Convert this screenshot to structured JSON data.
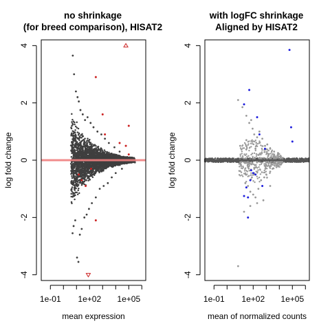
{
  "chart_data": [
    {
      "type": "scatter",
      "title_lines": [
        "no shrinkage",
        "(for breed comparison), HISAT2"
      ],
      "xlabel": "mean expression",
      "ylabel": "log fold change",
      "xscale": "log10",
      "xlim": [
        0.02,
        2000000
      ],
      "ylim": [
        -4.2,
        4.2
      ],
      "xticks": [
        0.1,
        100,
        100000
      ],
      "xtick_labels": [
        "1e-01",
        "1e+02",
        "1e+05"
      ],
      "yticks": [
        -4,
        -2,
        0,
        2,
        4
      ],
      "ytick_labels": [
        "-4",
        "-2",
        "0",
        "2",
        "4"
      ],
      "reference_line": {
        "y": 0,
        "color": "#f08080"
      },
      "colors": {
        "non_significant": "#3f3f3f",
        "significant": "#cc2222"
      },
      "series": [
        {
          "significant": false,
          "x": [
            5.2,
            6.5,
            9.0,
            12.0,
            15.0,
            20.0,
            30.0,
            45.0,
            70.0,
            120.0,
            200.0,
            400.0,
            800.0,
            1500.0,
            3000.0,
            8000.0,
            20000.0,
            5.0,
            6.0,
            8.0,
            11.0,
            14.0,
            18.0,
            25.0,
            40.0,
            60.0,
            90.0,
            150.0,
            300.0,
            600.0,
            1200.0,
            2500.0,
            5000.0,
            10000.0,
            30000.0
          ],
          "y": [
            3.65,
            3.0,
            2.4,
            2.2,
            2.05,
            1.75,
            1.6,
            1.4,
            1.5,
            1.3,
            1.15,
            1.0,
            0.9,
            0.75,
            0.6,
            0.45,
            0.3,
            -2.55,
            -2.3,
            -2.1,
            -3.4,
            -3.55,
            -2.6,
            -2.4,
            -2.0,
            -1.9,
            -1.7,
            -1.5,
            -1.3,
            -1.0,
            -0.9,
            -0.8,
            -0.6,
            -0.45,
            -0.3
          ]
        },
        {
          "significant": true,
          "x": [
            60000.0,
            300.0,
            100000.0,
            1500.0,
            20000.0,
            60000.0,
            300.0,
            80.0,
            50.0,
            15.0,
            25.0,
            130.0,
            1000.0,
            100000.0
          ],
          "y": [
            4.0,
            2.9,
            1.2,
            0.9,
            0.6,
            0.5,
            -2.1,
            -4.0,
            -0.9,
            -0.5,
            -0.7,
            -0.3,
            1.6,
            0.2
          ]
        }
      ]
    },
    {
      "type": "scatter",
      "title_lines": [
        "with logFC shrinkage",
        "Aligned by HISAT2"
      ],
      "xlabel": "mean of normalized counts",
      "ylabel": "log fold change",
      "xscale": "log10",
      "xlim": [
        0.02,
        2000000
      ],
      "ylim": [
        -4.2,
        4.2
      ],
      "xticks": [
        0.1,
        100,
        100000
      ],
      "xtick_labels": [
        "1e-01",
        "1e+02",
        "1e+05"
      ],
      "yticks": [
        -4,
        -2,
        0,
        2,
        4
      ],
      "ytick_labels": [
        "-4",
        "-2",
        "0",
        "2",
        "4"
      ],
      "reference_line": {
        "y": 0,
        "color": "#555555"
      },
      "colors": {
        "non_significant": "#999999",
        "significant": "#1f1fdd",
        "band": "#555555"
      },
      "series": [
        {
          "significant": false,
          "x": [
            7.0,
            15.0,
            30.0,
            50.0,
            70.0,
            90.0,
            120.0,
            200.0,
            300.0,
            500.0,
            800.0,
            1200.0,
            2000.0,
            4000.0,
            8000.0,
            25.0,
            40.0,
            60.0,
            100.0,
            150.0,
            250.0,
            400.0,
            700.0,
            1000.0,
            3000.0,
            7.0,
            20.0,
            60.0,
            200.0,
            600.0,
            2000.0,
            10.0,
            30.0,
            80.0,
            150.0,
            300.0,
            2000.0
          ],
          "y": [
            2.1,
            1.85,
            1.55,
            1.3,
            1.4,
            1.1,
            0.9,
            0.8,
            0.6,
            0.75,
            0.5,
            0.55,
            0.4,
            0.3,
            0.25,
            -0.8,
            -0.9,
            -1.1,
            -1.2,
            -1.3,
            -1.0,
            -0.7,
            -0.6,
            -0.5,
            -0.3,
            -3.7,
            -1.8,
            -1.6,
            -1.5,
            -1.4,
            -0.9,
            0.5,
            0.7,
            -0.6,
            0.4,
            1.0,
            -0.4
          ]
        },
        {
          "significant": true,
          "x": [
            60000.0,
            50.0,
            20.0,
            200.0,
            300.0,
            80000.0,
            100000.0,
            40.0,
            100.0,
            500.0,
            60.0,
            150.0,
            20.0,
            40.0,
            70.0,
            30.0,
            800.0
          ],
          "y": [
            3.85,
            2.45,
            1.95,
            1.5,
            0.9,
            1.15,
            0.65,
            -2.0,
            -0.45,
            -0.9,
            -0.7,
            -0.5,
            -1.25,
            -1.3,
            -0.35,
            -0.95,
            0.4
          ]
        }
      ]
    }
  ]
}
